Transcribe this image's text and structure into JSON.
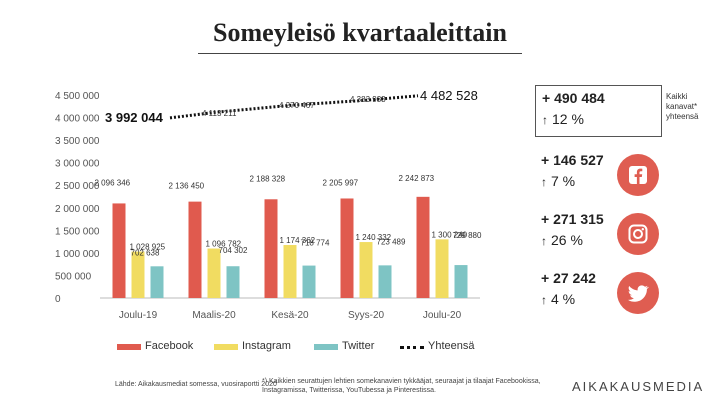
{
  "title": "Someyleisö kvartaaleittain",
  "chart_data": {
    "type": "bar",
    "categories": [
      "Joulu-19",
      "Maalis-20",
      "Kesä-20",
      "Syys-20",
      "Joulu-20"
    ],
    "series": [
      {
        "name": "Facebook",
        "color": "#e05a4e",
        "values": [
          2096346,
          2136450,
          2188328,
          2205997,
          2242873
        ],
        "labels": [
          "2 096 346",
          "2 136 450",
          "2 188 328",
          "2 205 997",
          "2 242 873"
        ]
      },
      {
        "name": "Instagram",
        "color": "#f1dc61",
        "values": [
          1028925,
          1096782,
          1174362,
          1240332,
          1300240
        ],
        "labels": [
          "1 028 925",
          "1 096 782",
          "1 174 362",
          "1 240 332",
          "1 300 240"
        ]
      },
      {
        "name": "Twitter",
        "color": "#7ec4c4",
        "values": [
          702638,
          704302,
          718774,
          723489,
          729880
        ],
        "labels": [
          "702 638",
          "704 302",
          "718 774",
          "723 489",
          "729 880"
        ]
      },
      {
        "name": "Yhteensä",
        "style": "dotted-line",
        "color": "#111111",
        "values": [
          3992044,
          4113211,
          4270467,
          4383933,
          4482528
        ],
        "labels": [
          "3 992 044",
          "4 113 211",
          "4 270 467",
          "4 383 933",
          "4 482 528"
        ]
      }
    ],
    "ylim": [
      0,
      4500000
    ],
    "yticks": [
      0,
      500000,
      1000000,
      1500000,
      2000000,
      2500000,
      3000000,
      3500000,
      4000000,
      4500000
    ],
    "ytick_labels": [
      "0",
      "500 000",
      "1 000 000",
      "1 500 000",
      "2 000 000",
      "2 500 000",
      "3 000 000",
      "3 500 000",
      "4 000 000",
      "4 500 000"
    ],
    "legend": "bottom"
  },
  "kpis": [
    {
      "abs": "+ 490 484",
      "pct": "12 %",
      "arrow": "↑",
      "icon": "total-note"
    },
    {
      "abs": "+ 146 527",
      "pct": "7 %",
      "arrow": "↑",
      "icon": "facebook-icon"
    },
    {
      "abs": "+ 271 315",
      "pct": "26 %",
      "arrow": "↑",
      "icon": "instagram-icon"
    },
    {
      "abs": "+ 27 242",
      "pct": "4 %",
      "arrow": "↑",
      "icon": "twitter-icon"
    }
  ],
  "total_note": "Kaikki kanavat* yhteensä",
  "source": "Lähde: Aikakausmediat somessa, vuosiraportti 2020",
  "footnote": "*) Kaikkien seurattujen lehtien somekanavien tykkääjat, seuraajat ja tilaajat Facebookissa, Instagramissa, Twitterissa, YouTubessa ja Pinterestissa.",
  "brand": "AIKAKAUSMEDIA",
  "colors": {
    "accent": "#df5d51"
  }
}
